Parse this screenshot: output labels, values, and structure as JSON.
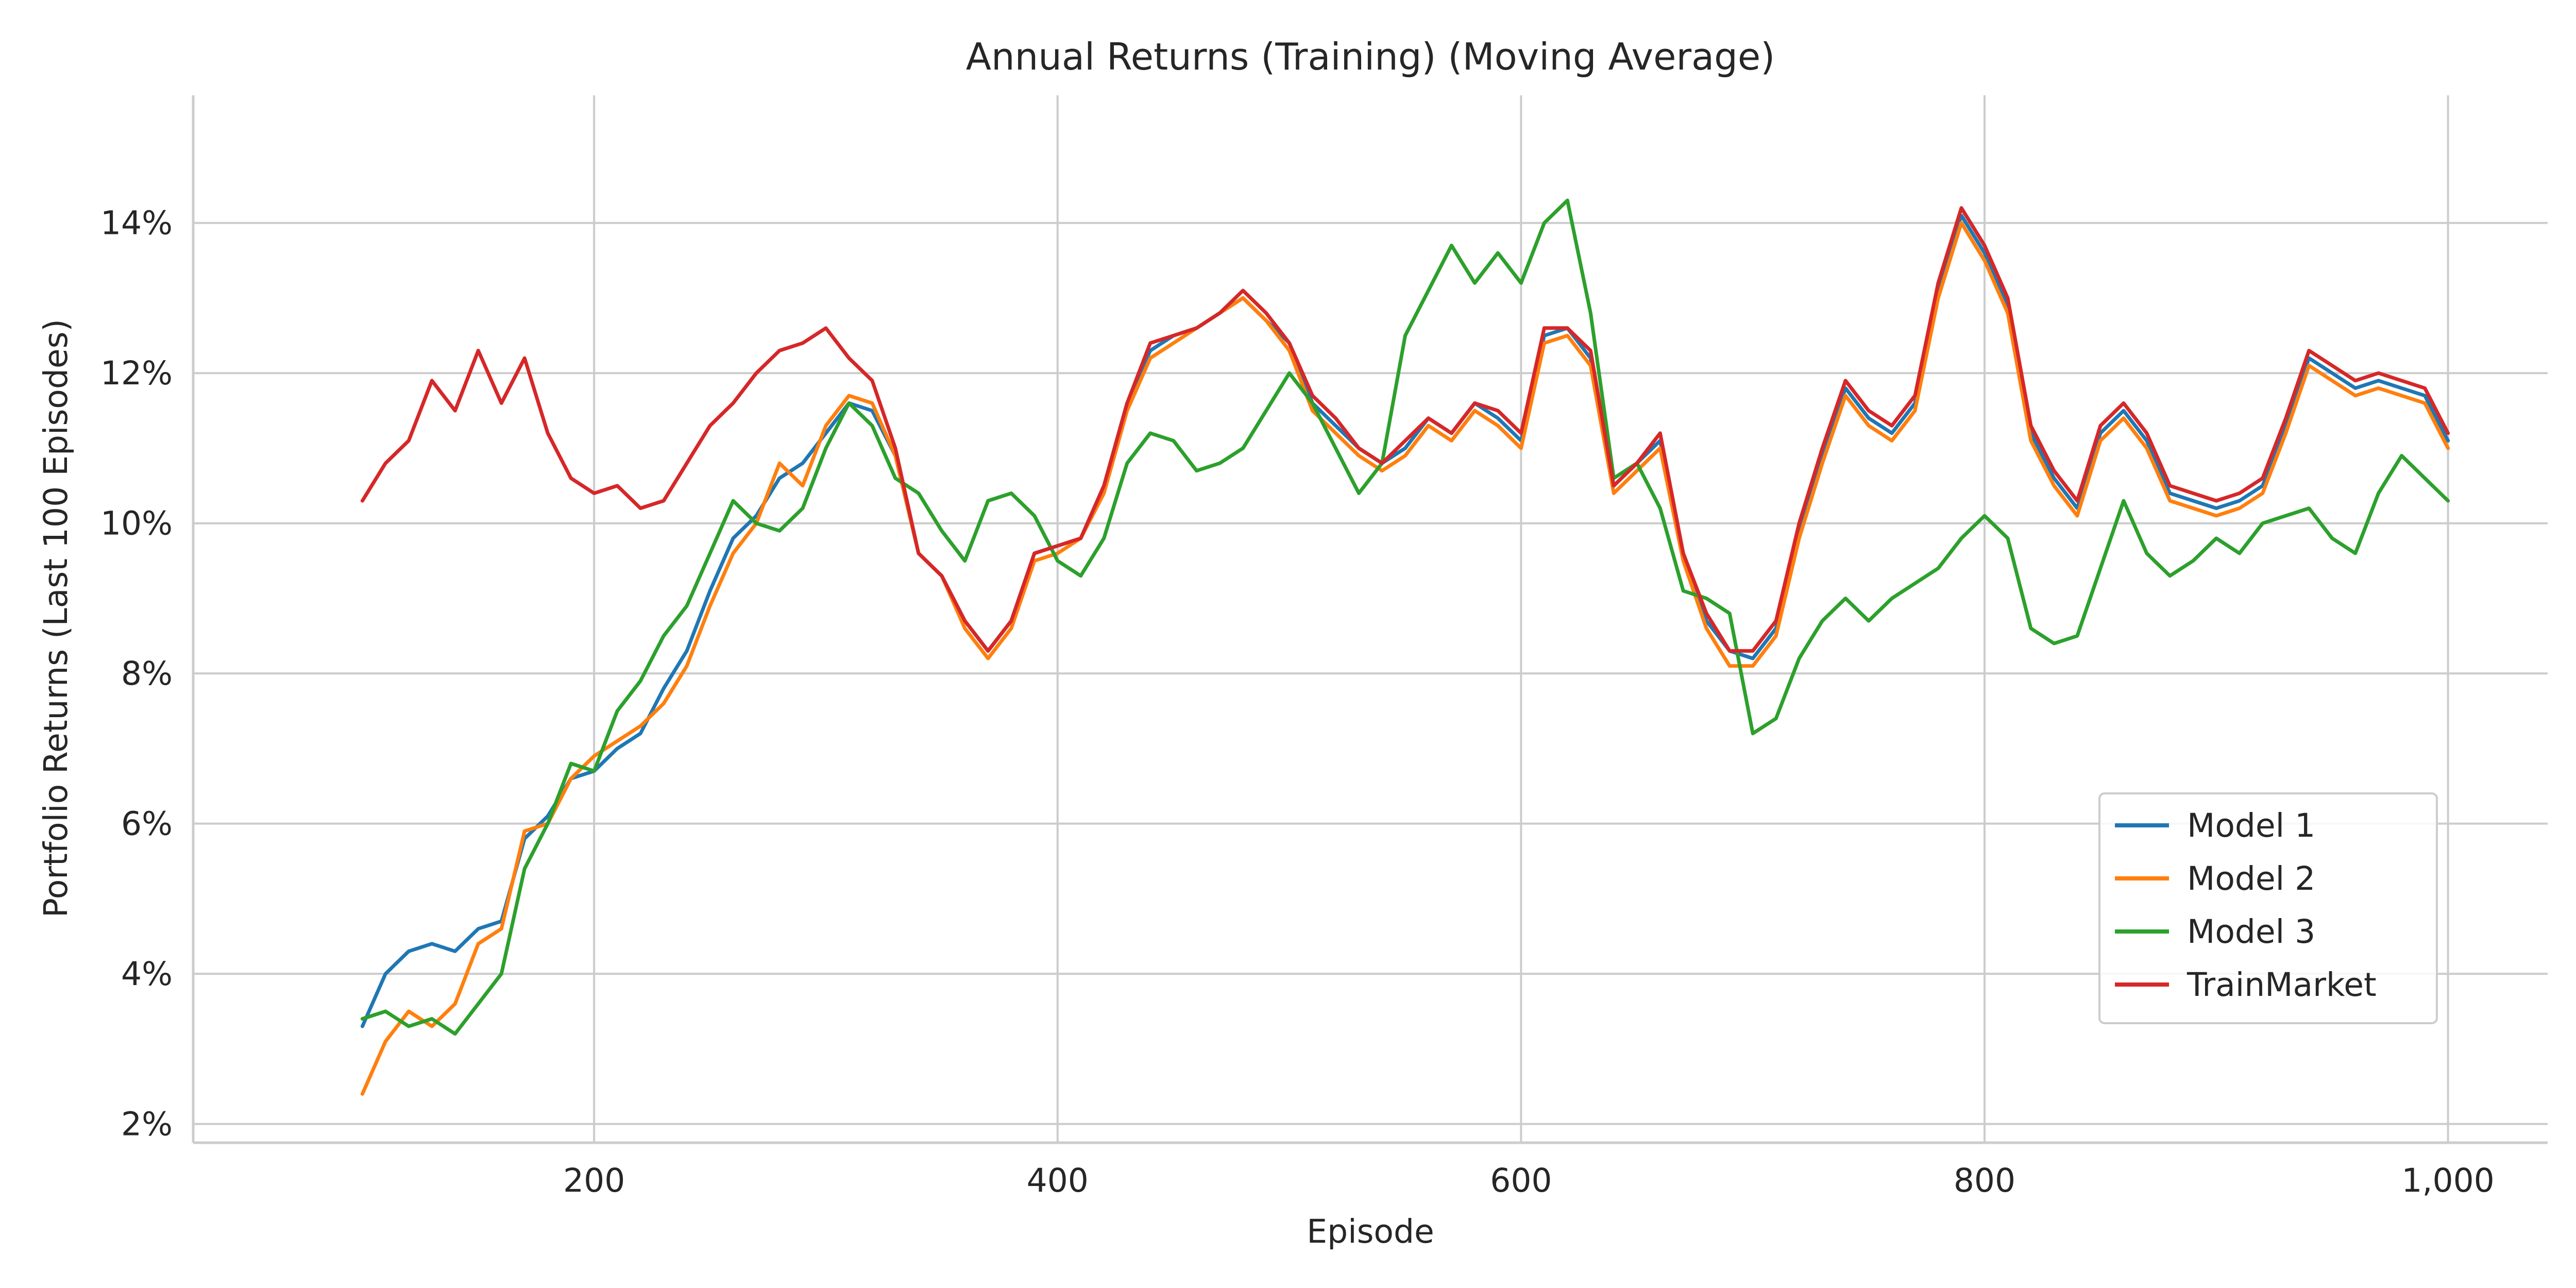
{
  "chart_data": {
    "type": "line",
    "title": "Annual Returns (Training) (Moving Average)",
    "xlabel": "Episode",
    "ylabel": "Portfolio Returns (Last 100 Episodes)",
    "xlim": [
      27,
      1043
    ],
    "ylim": [
      1.75,
      15.7
    ],
    "x_ticks": [
      200,
      400,
      600,
      800,
      1000
    ],
    "x_tick_labels": [
      "200",
      "400",
      "600",
      "800",
      "1,000"
    ],
    "y_ticks": [
      2,
      4,
      6,
      8,
      10,
      12,
      14
    ],
    "y_tick_labels": [
      "2%",
      "4%",
      "6%",
      "8%",
      "10%",
      "12%",
      "14%"
    ],
    "grid": true,
    "legend_position": "lower-right",
    "x": [
      100,
      110,
      120,
      130,
      140,
      150,
      160,
      170,
      180,
      190,
      200,
      210,
      220,
      230,
      240,
      250,
      260,
      270,
      280,
      290,
      300,
      310,
      320,
      330,
      340,
      350,
      360,
      370,
      380,
      390,
      400,
      410,
      420,
      430,
      440,
      450,
      460,
      470,
      480,
      490,
      500,
      510,
      520,
      530,
      540,
      550,
      560,
      570,
      580,
      590,
      600,
      610,
      620,
      630,
      640,
      650,
      660,
      670,
      680,
      690,
      700,
      710,
      720,
      730,
      740,
      750,
      760,
      770,
      780,
      790,
      800,
      810,
      820,
      830,
      840,
      850,
      860,
      870,
      880,
      890,
      900,
      910,
      920,
      930,
      940,
      950,
      960,
      970,
      980,
      990,
      1000
    ],
    "series": [
      {
        "name": "Model 1",
        "color": "#1f77b4",
        "values": [
          3.3,
          4.0,
          4.3,
          4.4,
          4.3,
          4.6,
          4.7,
          5.8,
          6.1,
          6.6,
          6.7,
          7.0,
          7.2,
          7.8,
          8.3,
          9.1,
          9.8,
          10.1,
          10.6,
          10.8,
          11.2,
          11.6,
          11.5,
          10.9,
          9.6,
          9.3,
          8.7,
          8.3,
          8.7,
          9.6,
          9.7,
          9.8,
          10.5,
          11.6,
          12.3,
          12.5,
          12.6,
          12.8,
          13.0,
          12.7,
          12.4,
          11.6,
          11.3,
          11.0,
          10.8,
          11.0,
          11.4,
          11.2,
          11.6,
          11.4,
          11.1,
          12.5,
          12.6,
          12.2,
          10.5,
          10.8,
          11.1,
          9.6,
          8.7,
          8.3,
          8.2,
          8.6,
          9.9,
          10.9,
          11.8,
          11.4,
          11.2,
          11.6,
          13.1,
          14.1,
          13.6,
          12.9,
          11.2,
          10.6,
          10.2,
          11.2,
          11.5,
          11.1,
          10.4,
          10.3,
          10.2,
          10.3,
          10.5,
          11.3,
          12.2,
          12.0,
          11.8,
          11.9,
          11.8,
          11.7,
          11.1
        ]
      },
      {
        "name": "Model 2",
        "color": "#ff7f0e",
        "values": [
          2.4,
          3.1,
          3.5,
          3.3,
          3.6,
          4.4,
          4.6,
          5.9,
          6.0,
          6.6,
          6.9,
          7.1,
          7.3,
          7.6,
          8.1,
          8.9,
          9.6,
          10.0,
          10.8,
          10.5,
          11.3,
          11.7,
          11.6,
          10.9,
          9.6,
          9.3,
          8.6,
          8.2,
          8.6,
          9.5,
          9.6,
          9.8,
          10.4,
          11.5,
          12.2,
          12.4,
          12.6,
          12.8,
          13.0,
          12.7,
          12.3,
          11.5,
          11.2,
          10.9,
          10.7,
          10.9,
          11.3,
          11.1,
          11.5,
          11.3,
          11.0,
          12.4,
          12.5,
          12.1,
          10.4,
          10.7,
          11.0,
          9.5,
          8.6,
          8.1,
          8.1,
          8.5,
          9.8,
          10.8,
          11.7,
          11.3,
          11.1,
          11.5,
          13.0,
          14.0,
          13.5,
          12.8,
          11.1,
          10.5,
          10.1,
          11.1,
          11.4,
          11.0,
          10.3,
          10.2,
          10.1,
          10.2,
          10.4,
          11.2,
          12.1,
          11.9,
          11.7,
          11.8,
          11.7,
          11.6,
          11.0
        ]
      },
      {
        "name": "Model 3",
        "color": "#2ca02c",
        "values": [
          3.4,
          3.5,
          3.3,
          3.4,
          3.2,
          3.6,
          4.0,
          5.4,
          6.0,
          6.8,
          6.7,
          7.5,
          7.9,
          8.5,
          8.9,
          9.6,
          10.3,
          10.0,
          9.9,
          10.2,
          11.0,
          11.6,
          11.3,
          10.6,
          10.4,
          9.9,
          9.5,
          10.3,
          10.4,
          10.1,
          9.5,
          9.3,
          9.8,
          10.8,
          11.2,
          11.1,
          10.7,
          10.8,
          11.0,
          11.5,
          12.0,
          11.6,
          11.0,
          10.4,
          10.8,
          12.5,
          13.1,
          13.7,
          13.2,
          13.6,
          13.2,
          14.0,
          14.3,
          12.8,
          10.6,
          10.8,
          10.2,
          9.1,
          9.0,
          8.8,
          7.2,
          7.4,
          8.2,
          8.7,
          9.0,
          8.7,
          9.0,
          9.2,
          9.4,
          9.8,
          10.1,
          9.8,
          8.6,
          8.4,
          8.5,
          9.4,
          10.3,
          9.6,
          9.3,
          9.5,
          9.8,
          9.6,
          10.0,
          10.1,
          10.2,
          9.8,
          9.6,
          10.4,
          10.9,
          10.6,
          10.3
        ]
      },
      {
        "name": "TrainMarket",
        "color": "#d62728",
        "values": [
          10.3,
          10.8,
          11.1,
          11.9,
          11.5,
          12.3,
          11.6,
          12.2,
          11.2,
          10.6,
          10.4,
          10.5,
          10.2,
          10.3,
          10.8,
          11.3,
          11.6,
          12.0,
          12.3,
          12.4,
          12.6,
          12.2,
          11.9,
          11.0,
          9.6,
          9.3,
          8.7,
          8.3,
          8.7,
          9.6,
          9.7,
          9.8,
          10.5,
          11.6,
          12.4,
          12.5,
          12.6,
          12.8,
          13.1,
          12.8,
          12.4,
          11.7,
          11.4,
          11.0,
          10.8,
          11.1,
          11.4,
          11.2,
          11.6,
          11.5,
          11.2,
          12.6,
          12.6,
          12.3,
          10.5,
          10.8,
          11.2,
          9.6,
          8.8,
          8.3,
          8.3,
          8.7,
          10.0,
          11.0,
          11.9,
          11.5,
          11.3,
          11.7,
          13.2,
          14.2,
          13.7,
          13.0,
          11.3,
          10.7,
          10.3,
          11.3,
          11.6,
          11.2,
          10.5,
          10.4,
          10.3,
          10.4,
          10.6,
          11.4,
          12.3,
          12.1,
          11.9,
          12.0,
          11.9,
          11.8,
          11.2
        ]
      }
    ]
  }
}
